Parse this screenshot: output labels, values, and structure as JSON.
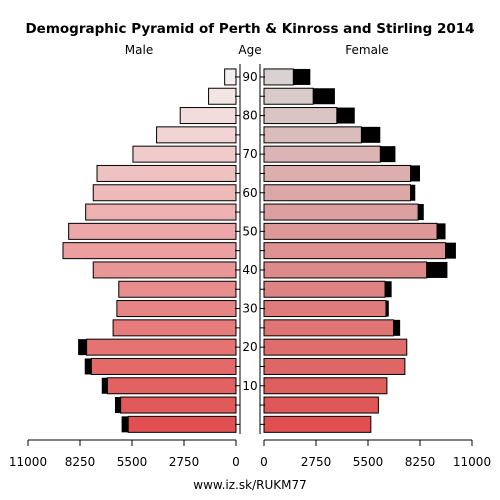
{
  "chart_data": {
    "type": "bar",
    "title": "Demographic Pyramid of Perth & Kinross and Stirling 2014",
    "left_label": "Male",
    "center_label": "Age",
    "right_label": "Female",
    "x_ticks_left": [
      "11000",
      "8250",
      "5500",
      "2750",
      "0"
    ],
    "x_ticks_right": [
      "0",
      "2750",
      "5500",
      "8250",
      "11000"
    ],
    "x_tick_values": [
      0,
      2750,
      5500,
      8250,
      11000
    ],
    "xlim": [
      0,
      11000
    ],
    "age_tick_labels": [
      "10",
      "20",
      "30",
      "40",
      "50",
      "60",
      "70",
      "80",
      "90"
    ],
    "age_groups": [
      "0-4",
      "5-9",
      "10-14",
      "15-19",
      "20-24",
      "25-29",
      "30-34",
      "35-39",
      "40-44",
      "45-49",
      "50-54",
      "55-59",
      "60-64",
      "65-69",
      "70-74",
      "75-79",
      "80-84",
      "85-89",
      "90+"
    ],
    "series": [
      {
        "name": "Male",
        "values": [
          5700,
          6100,
          6800,
          7650,
          7900,
          6500,
          6300,
          6200,
          7550,
          9150,
          8850,
          7950,
          7550,
          7350,
          5450,
          4200,
          2950,
          1450,
          600
        ],
        "excess": [
          350,
          300,
          300,
          350,
          450,
          0,
          0,
          0,
          0,
          0,
          0,
          0,
          0,
          0,
          0,
          0,
          0,
          0,
          0
        ]
      },
      {
        "name": "Female",
        "values": [
          5650,
          6050,
          6500,
          7450,
          7550,
          6850,
          6450,
          6400,
          8600,
          9600,
          9150,
          8150,
          7750,
          7750,
          6150,
          5150,
          3850,
          2600,
          1550
        ],
        "excess": [
          0,
          0,
          0,
          0,
          0,
          350,
          150,
          350,
          1100,
          550,
          450,
          300,
          250,
          500,
          800,
          1000,
          950,
          1150,
          900
        ]
      }
    ]
  },
  "footer": {
    "source": "www.iz.sk/RUKM77"
  }
}
